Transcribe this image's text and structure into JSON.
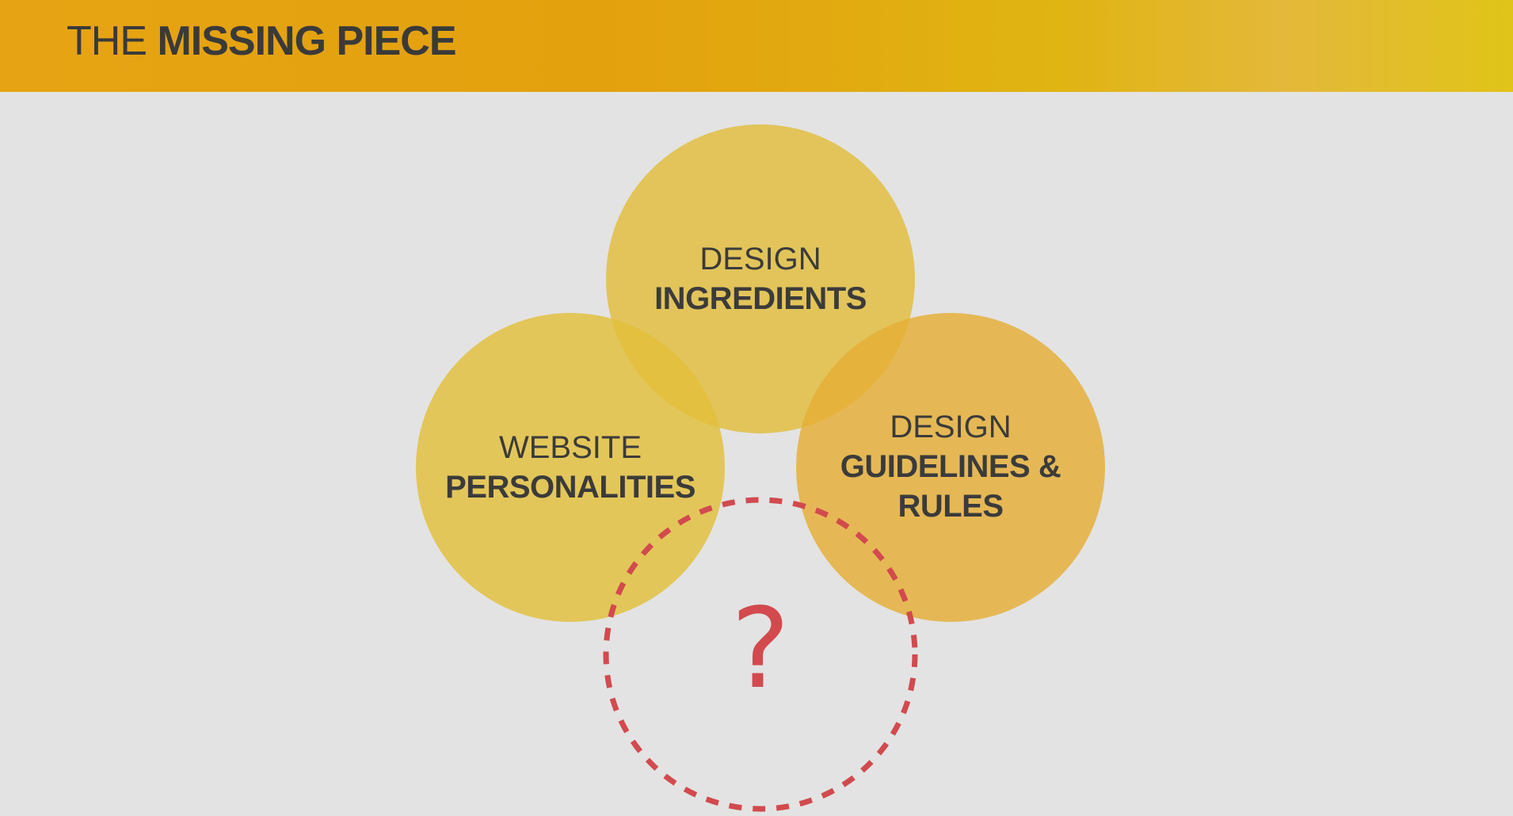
{
  "header": {
    "title_light": "THE",
    "title_bold": "MISSING PIECE"
  },
  "diagram": {
    "circles": [
      {
        "id": "design-ingredients",
        "line1": "DESIGN",
        "line2": "INGREDIENTS",
        "color": "#e2bd3c"
      },
      {
        "id": "website-personalities",
        "line1": "WEBSITE",
        "line2": "PERSONALITIES",
        "color": "#e3c03a"
      },
      {
        "id": "design-guidelines",
        "line1": "DESIGN",
        "line2": "GUIDELINES &",
        "line3": "RULES",
        "color": "#e5b13a"
      }
    ],
    "missing": {
      "symbol": "?",
      "color": "#d24a4e"
    }
  },
  "colors": {
    "background": "#e3e3e3",
    "text": "#3b3b3b",
    "accent_header": "#e3a10e",
    "missing_dash": "#d24a4e"
  }
}
